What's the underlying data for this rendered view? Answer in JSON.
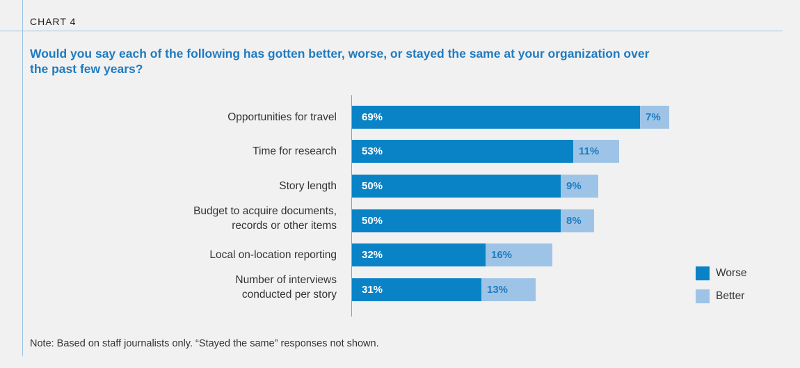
{
  "header": {
    "chart_label": "CHART 4"
  },
  "chart_data": {
    "type": "bar",
    "orientation": "horizontal",
    "stacked": true,
    "title": "Would you say each of the following has gotten better, worse, or stayed the same at your organization over the past few years?",
    "categories": [
      "Opportunities for travel",
      "Time for research",
      "Story length",
      "Budget to acquire documents, records or other items",
      "Local on-location reporting",
      "Number of interviews conducted per story"
    ],
    "category_lines": [
      [
        "Opportunities for travel"
      ],
      [
        "Time for research"
      ],
      [
        "Story length"
      ],
      [
        "Budget to acquire documents,",
        "records or other items"
      ],
      [
        "Local on-location reporting"
      ],
      [
        "Number of interviews",
        "conducted per story"
      ]
    ],
    "series": [
      {
        "name": "Worse",
        "values": [
          69,
          53,
          50,
          50,
          32,
          31
        ],
        "labels": [
          "69%",
          "53%",
          "50%",
          "50%",
          "32%",
          "31%"
        ],
        "color": "#0a83c6"
      },
      {
        "name": "Better",
        "values": [
          7,
          11,
          9,
          8,
          16,
          13
        ],
        "labels": [
          "7%",
          "11%",
          "9%",
          "8%",
          "16%",
          "13%"
        ],
        "color": "#9dc4e6"
      }
    ],
    "unit": "%",
    "legend_position": "bottom-right",
    "grid": false
  },
  "note": "Note:  Based on staff journalists only. “Stayed the same” responses not shown."
}
